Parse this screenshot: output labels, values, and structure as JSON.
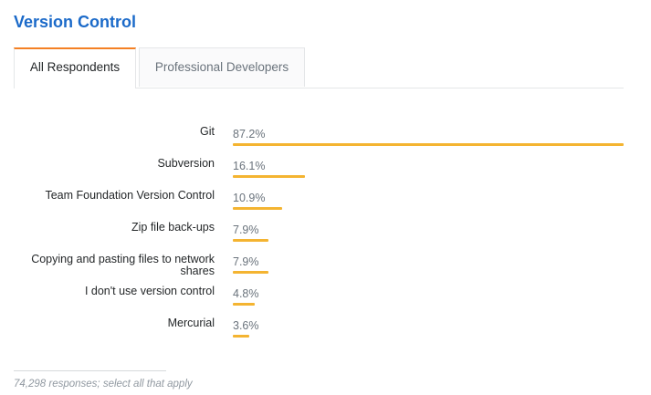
{
  "header": {
    "title": "Version Control"
  },
  "tabs": [
    {
      "label": "All Respondents",
      "active": true
    },
    {
      "label": "Professional Developers",
      "active": false
    }
  ],
  "chart_data": {
    "type": "bar",
    "orientation": "horizontal",
    "title": "",
    "xlabel": "",
    "ylabel": "",
    "xlim": [
      0,
      87.2
    ],
    "bar_color": "#f4b431",
    "categories": [
      "Git",
      "Subversion",
      "Team Foundation Version Control",
      "Zip file back-ups",
      "Copying and pasting files to network shares",
      "I don't use version control",
      "Mercurial"
    ],
    "values": [
      87.2,
      16.1,
      10.9,
      7.9,
      7.9,
      4.8,
      3.6
    ],
    "value_labels": [
      "87.2%",
      "16.1%",
      "10.9%",
      "7.9%",
      "7.9%",
      "4.8%",
      "3.6%"
    ]
  },
  "footnote": "74,298 responses; select all that apply",
  "colors": {
    "title": "#1b6ac9",
    "tab_accent": "#f48024",
    "bar": "#f4b431"
  }
}
